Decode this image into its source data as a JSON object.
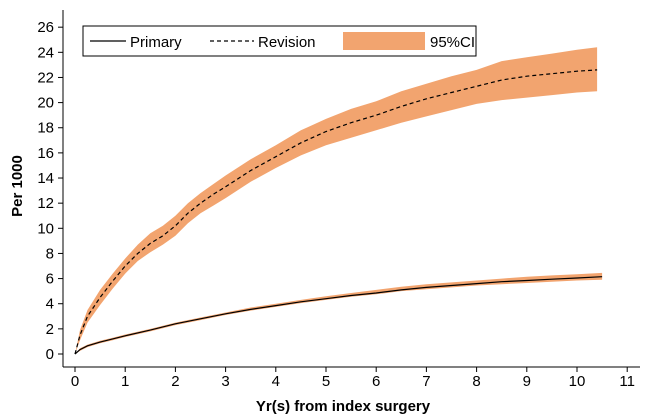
{
  "chart_data": {
    "type": "line",
    "title": "",
    "xlabel": "Yr(s) from index surgery",
    "ylabel": "Per 1000",
    "xlim": [
      0,
      11
    ],
    "ylim": [
      0,
      27
    ],
    "x_ticks": [
      0,
      1,
      2,
      3,
      4,
      5,
      6,
      7,
      8,
      9,
      10,
      11
    ],
    "y_ticks": [
      0,
      2,
      4,
      6,
      8,
      10,
      12,
      14,
      16,
      18,
      20,
      22,
      24,
      26
    ],
    "grid": false,
    "legend": {
      "position": "top-left",
      "entries": [
        "Primary",
        "Revision",
        "95%CI"
      ]
    },
    "band_color": "#f2a46f",
    "line_color": "#000000",
    "series": [
      {
        "name": "Primary",
        "style": "solid",
        "x": [
          0,
          0.1,
          0.25,
          0.5,
          0.75,
          1,
          1.5,
          2,
          2.5,
          3,
          3.5,
          4,
          4.5,
          5,
          5.5,
          6,
          6.5,
          7,
          7.5,
          8,
          8.5,
          9,
          9.5,
          10,
          10.5
        ],
        "y": [
          0,
          0.35,
          0.65,
          0.95,
          1.2,
          1.45,
          1.9,
          2.4,
          2.8,
          3.2,
          3.55,
          3.85,
          4.15,
          4.4,
          4.65,
          4.85,
          5.1,
          5.3,
          5.45,
          5.6,
          5.75,
          5.85,
          5.95,
          6.05,
          6.15
        ],
        "ci_lower": [
          0,
          0.25,
          0.55,
          0.85,
          1.1,
          1.35,
          1.8,
          2.3,
          2.7,
          3.1,
          3.45,
          3.75,
          4.05,
          4.3,
          4.55,
          4.75,
          5.0,
          5.15,
          5.3,
          5.45,
          5.55,
          5.65,
          5.75,
          5.85,
          5.9
        ],
        "ci_upper": [
          0,
          0.45,
          0.75,
          1.05,
          1.3,
          1.55,
          2.0,
          2.5,
          2.9,
          3.3,
          3.7,
          4.0,
          4.3,
          4.6,
          4.85,
          5.1,
          5.35,
          5.55,
          5.7,
          5.85,
          6.0,
          6.15,
          6.25,
          6.35,
          6.45
        ]
      },
      {
        "name": "Revision",
        "style": "dashed",
        "x": [
          0,
          0.1,
          0.25,
          0.5,
          0.75,
          1,
          1.25,
          1.5,
          1.75,
          2,
          2.25,
          2.5,
          2.75,
          3,
          3.5,
          4,
          4.5,
          5,
          5.5,
          6,
          6.5,
          7,
          7.5,
          8,
          8.5,
          9,
          9.5,
          10,
          10.4
        ],
        "y": [
          0,
          1.5,
          3.0,
          4.5,
          5.8,
          7.0,
          8.0,
          8.8,
          9.4,
          10.2,
          11.2,
          12.0,
          12.7,
          13.3,
          14.6,
          15.7,
          16.8,
          17.7,
          18.4,
          19.0,
          19.7,
          20.3,
          20.8,
          21.3,
          21.8,
          22.1,
          22.3,
          22.5,
          22.6
        ],
        "ci_lower": [
          0,
          1.1,
          2.5,
          3.9,
          5.2,
          6.4,
          7.4,
          8.1,
          8.7,
          9.4,
          10.4,
          11.2,
          11.8,
          12.4,
          13.7,
          14.8,
          15.8,
          16.6,
          17.2,
          17.8,
          18.4,
          18.9,
          19.4,
          19.9,
          20.2,
          20.4,
          20.6,
          20.8,
          20.9
        ],
        "ci_upper": [
          0,
          1.9,
          3.5,
          5.1,
          6.4,
          7.6,
          8.7,
          9.6,
          10.2,
          11.0,
          12.0,
          12.8,
          13.5,
          14.2,
          15.5,
          16.6,
          17.8,
          18.7,
          19.5,
          20.1,
          20.9,
          21.5,
          22.1,
          22.6,
          23.3,
          23.6,
          23.9,
          24.2,
          24.4
        ]
      }
    ]
  }
}
